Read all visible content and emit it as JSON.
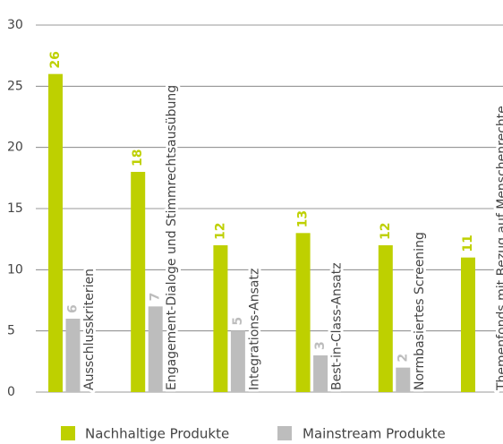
{
  "chart_data": {
    "type": "bar",
    "categories": [
      "Ausschlusskriterien",
      "Engagement-Dialoge und Stimmrechtsausübung",
      "Integrations-Ansatz",
      "Best-in-Class-Ansatz",
      "Normbasiertes Screening",
      "Themenfonds mit Bezug auf Menschenrechte"
    ],
    "series": [
      {
        "name": "Nachhaltige Produkte",
        "color": "#bed000",
        "values": [
          26,
          18,
          12,
          13,
          12,
          11
        ]
      },
      {
        "name": "Mainstream Produkte",
        "color": "#bdbdbd",
        "values": [
          6,
          7,
          5,
          3,
          2,
          null
        ]
      }
    ],
    "ylim": [
      0,
      30
    ],
    "yticks": [
      0,
      5,
      10,
      15,
      20,
      25,
      30
    ],
    "grid": true
  }
}
